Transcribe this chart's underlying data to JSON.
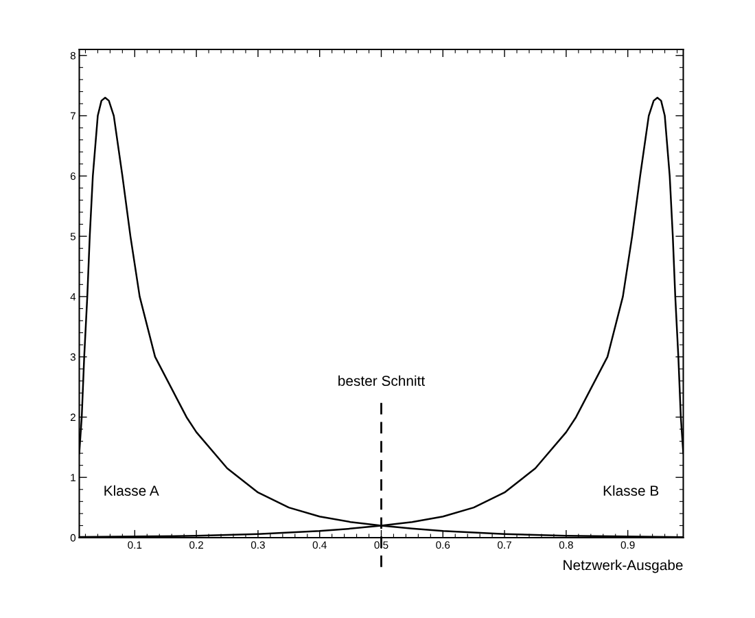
{
  "chart_data": {
    "type": "line",
    "xlabel": "Netzwerk-Ausgabe",
    "xlim": [
      0.01,
      0.99
    ],
    "ylim": [
      0,
      8.1
    ],
    "xticks": [
      0.1,
      0.2,
      0.3,
      0.4,
      0.5,
      0.6,
      0.7,
      0.8,
      0.9
    ],
    "yticks": [
      0,
      1,
      2,
      3,
      4,
      5,
      6,
      7,
      8
    ],
    "grid": false,
    "legend": false,
    "marker": "none",
    "line_style": "solid",
    "series": [
      {
        "color": "#000000",
        "x": [
          0.01,
          0.014,
          0.018,
          0.023,
          0.027,
          0.032,
          0.04,
          0.046,
          0.052,
          0.058,
          0.066,
          0.08,
          0.093,
          0.108,
          0.133,
          0.184,
          0.2,
          0.25,
          0.3,
          0.35,
          0.4,
          0.45,
          0.5,
          0.55,
          0.6,
          0.7,
          0.8,
          0.9,
          0.99
        ],
        "values": [
          1.4,
          2,
          3,
          4,
          5,
          6,
          7,
          7.25,
          7.3,
          7.25,
          7,
          6,
          5,
          4,
          3,
          2,
          1.75,
          1.15,
          0.75,
          0.5,
          0.35,
          0.26,
          0.2,
          0.15,
          0.11,
          0.06,
          0.03,
          0.02,
          0.01
        ]
      },
      {
        "color": "#000000",
        "x": [
          0.01,
          0.1,
          0.2,
          0.3,
          0.4,
          0.45,
          0.5,
          0.55,
          0.6,
          0.65,
          0.7,
          0.75,
          0.8,
          0.816,
          0.867,
          0.892,
          0.907,
          0.92,
          0.934,
          0.942,
          0.948,
          0.954,
          0.96,
          0.968,
          0.973,
          0.977,
          0.982,
          0.986,
          0.99
        ],
        "values": [
          0.01,
          0.02,
          0.03,
          0.06,
          0.11,
          0.15,
          0.2,
          0.26,
          0.35,
          0.5,
          0.75,
          1.15,
          1.75,
          2,
          3,
          4,
          5,
          6,
          7,
          7.25,
          7.3,
          7.25,
          7,
          6,
          5,
          4,
          3,
          2,
          1.4
        ]
      }
    ],
    "annotations": [
      "Klasse A",
      "Klasse B"
    ],
    "ref_lines": [
      {
        "axis": "x",
        "value": 0.5,
        "label": "bester Schnitt",
        "color": "#000000",
        "line_style": "dashed"
      }
    ]
  }
}
